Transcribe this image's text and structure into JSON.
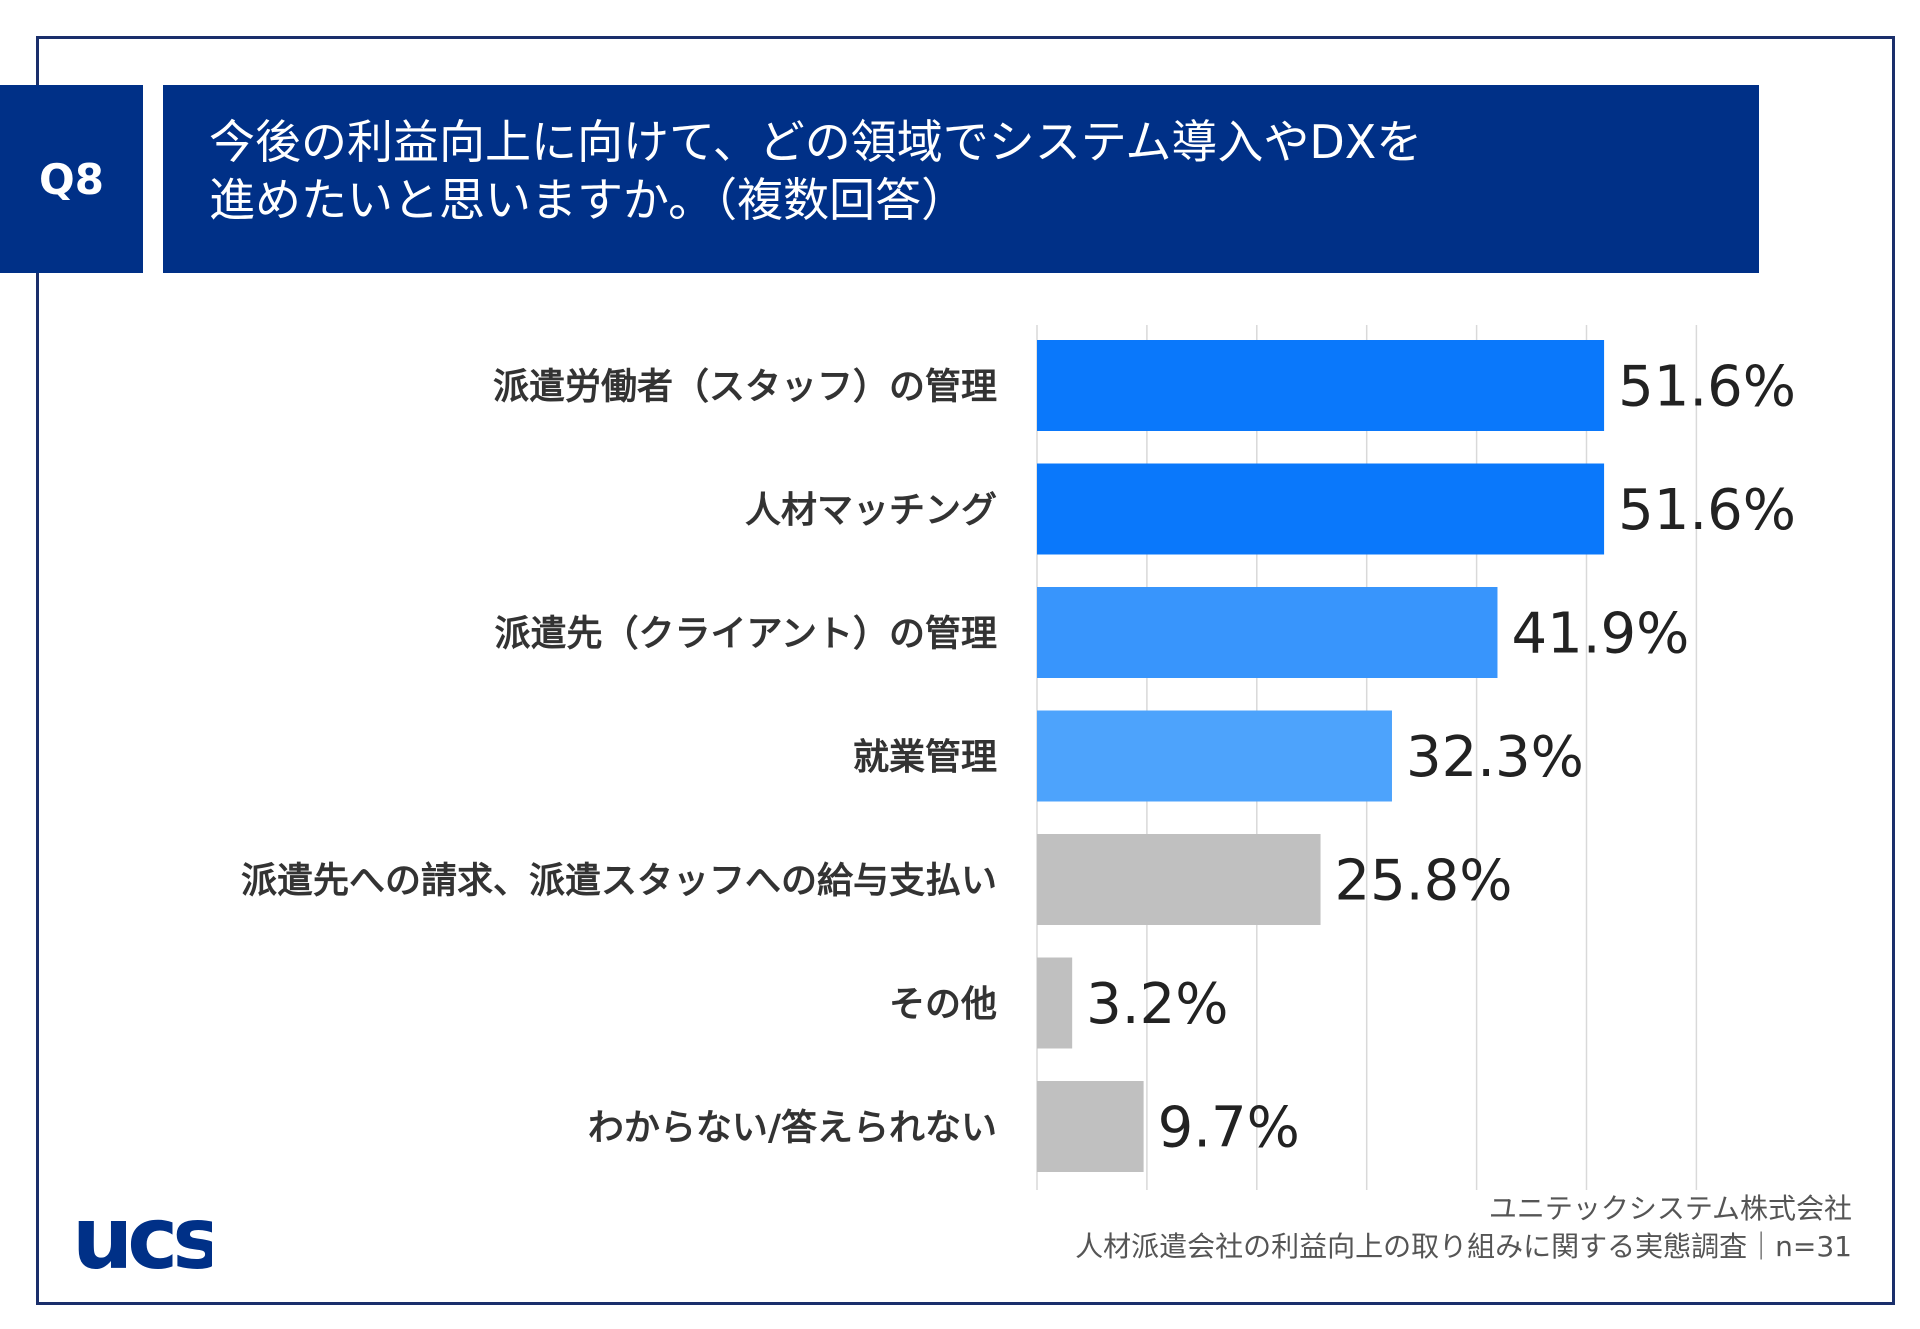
{
  "question_id": "Q8",
  "title_lines": [
    "今後の利益向上に向けて、どの領域でシステム導入やDXを",
    "進めたいと思いますか。（複数回答）"
  ],
  "footer": {
    "company": "ユニテックシステム株式会社",
    "survey": "人材派遣会社の利益向上の取り組みに関する実態調査｜n=31"
  },
  "logo_text": "ucs",
  "colors": {
    "header_bg": "#003087",
    "frame": "#1a2f6b",
    "bar_dark": "#0a78fb",
    "bar_mid": "#3895fc",
    "bar_light": "#4da3fc",
    "bar_gray": "#c0c0c0",
    "grid": "#d9d9d9"
  },
  "chart_data": {
    "type": "bar",
    "orientation": "horizontal",
    "title": "今後の利益向上に向けて、どの領域でシステム導入やDXを進めたいと思いますか。（複数回答）",
    "categories": [
      "派遣労働者（スタッフ）の管理",
      "人材マッチング",
      "派遣先（クライアント）の管理",
      "就業管理",
      "派遣先への請求、派遣スタッフへの給与支払い",
      "その他",
      "わからない/答えられない"
    ],
    "values": [
      51.6,
      51.6,
      41.9,
      32.3,
      25.8,
      3.2,
      9.7
    ],
    "value_labels": [
      "51.6%",
      "51.6%",
      "41.9%",
      "32.3%",
      "25.8%",
      "3.2%",
      "9.7%"
    ],
    "bar_color_keys": [
      "bar_dark",
      "bar_dark",
      "bar_mid",
      "bar_light",
      "bar_gray",
      "bar_gray",
      "bar_gray"
    ],
    "xlim": [
      0,
      60
    ],
    "grid_step": 10,
    "grid": true,
    "unit": "%"
  }
}
